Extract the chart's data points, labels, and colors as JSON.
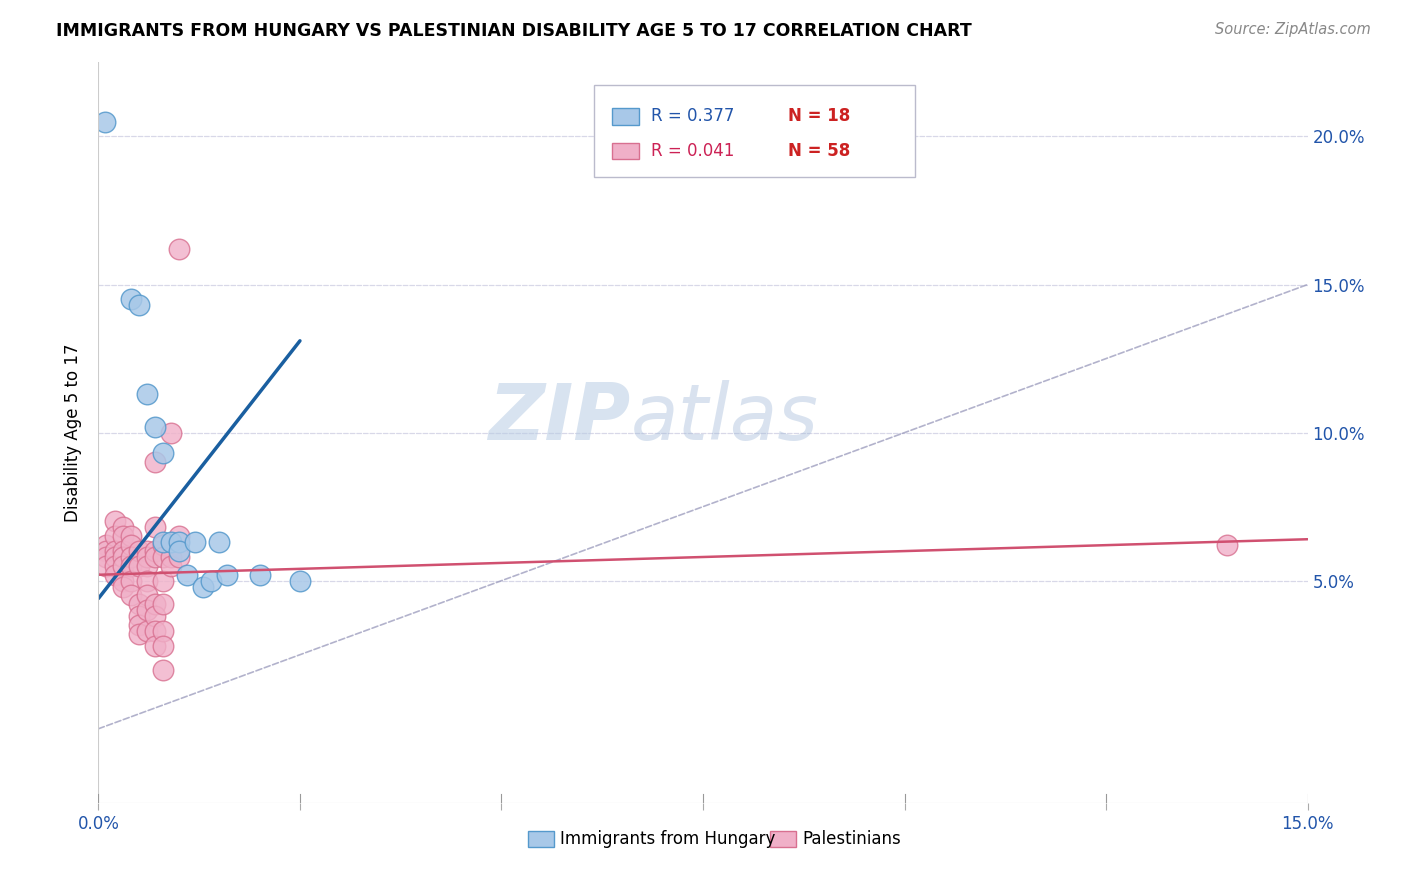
{
  "title": "IMMIGRANTS FROM HUNGARY VS PALESTINIAN DISABILITY AGE 5 TO 17 CORRELATION CHART",
  "source": "Source: ZipAtlas.com",
  "ylabel": "Disability Age 5 to 17",
  "right_yticks": [
    "5.0%",
    "10.0%",
    "15.0%",
    "20.0%"
  ],
  "right_ytick_vals": [
    0.05,
    0.1,
    0.15,
    0.2
  ],
  "legend1_r": "R = 0.377",
  "legend1_n": "N = 18",
  "legend2_r": "R = 0.041",
  "legend2_n": "N = 58",
  "legend_bottom1": "Immigrants from Hungary",
  "legend_bottom2": "Palestinians",
  "hungary_color": "#a8c8e8",
  "hungary_edge": "#5599cc",
  "palestinians_color": "#f0b0c8",
  "palestinians_edge": "#d87090",
  "trendline_hungary_color": "#1a5fa0",
  "trendline_pal_color": "#d05070",
  "diagonal_color": "#9999bb",
  "watermark_zip": "ZIP",
  "watermark_atlas": "atlas",
  "hungary_points": [
    [
      0.0008,
      0.205
    ],
    [
      0.004,
      0.145
    ],
    [
      0.005,
      0.143
    ],
    [
      0.006,
      0.113
    ],
    [
      0.007,
      0.102
    ],
    [
      0.008,
      0.093
    ],
    [
      0.008,
      0.063
    ],
    [
      0.009,
      0.063
    ],
    [
      0.01,
      0.063
    ],
    [
      0.01,
      0.06
    ],
    [
      0.011,
      0.052
    ],
    [
      0.012,
      0.063
    ],
    [
      0.013,
      0.048
    ],
    [
      0.014,
      0.05
    ],
    [
      0.015,
      0.063
    ],
    [
      0.016,
      0.052
    ],
    [
      0.02,
      0.052
    ],
    [
      0.025,
      0.05
    ]
  ],
  "palestinian_points": [
    [
      0.001,
      0.062
    ],
    [
      0.001,
      0.06
    ],
    [
      0.001,
      0.058
    ],
    [
      0.001,
      0.055
    ],
    [
      0.002,
      0.07
    ],
    [
      0.002,
      0.065
    ],
    [
      0.002,
      0.06
    ],
    [
      0.002,
      0.058
    ],
    [
      0.002,
      0.055
    ],
    [
      0.002,
      0.052
    ],
    [
      0.003,
      0.068
    ],
    [
      0.003,
      0.065
    ],
    [
      0.003,
      0.06
    ],
    [
      0.003,
      0.058
    ],
    [
      0.003,
      0.055
    ],
    [
      0.003,
      0.05
    ],
    [
      0.003,
      0.048
    ],
    [
      0.004,
      0.065
    ],
    [
      0.004,
      0.062
    ],
    [
      0.004,
      0.058
    ],
    [
      0.004,
      0.055
    ],
    [
      0.004,
      0.05
    ],
    [
      0.004,
      0.045
    ],
    [
      0.005,
      0.06
    ],
    [
      0.005,
      0.055
    ],
    [
      0.005,
      0.042
    ],
    [
      0.005,
      0.038
    ],
    [
      0.005,
      0.035
    ],
    [
      0.005,
      0.032
    ],
    [
      0.006,
      0.06
    ],
    [
      0.006,
      0.058
    ],
    [
      0.006,
      0.055
    ],
    [
      0.006,
      0.05
    ],
    [
      0.006,
      0.045
    ],
    [
      0.006,
      0.04
    ],
    [
      0.006,
      0.033
    ],
    [
      0.007,
      0.09
    ],
    [
      0.007,
      0.068
    ],
    [
      0.007,
      0.06
    ],
    [
      0.007,
      0.058
    ],
    [
      0.007,
      0.042
    ],
    [
      0.007,
      0.038
    ],
    [
      0.007,
      0.033
    ],
    [
      0.007,
      0.028
    ],
    [
      0.008,
      0.062
    ],
    [
      0.008,
      0.058
    ],
    [
      0.008,
      0.05
    ],
    [
      0.008,
      0.042
    ],
    [
      0.008,
      0.033
    ],
    [
      0.008,
      0.028
    ],
    [
      0.008,
      0.02
    ],
    [
      0.009,
      0.1
    ],
    [
      0.009,
      0.058
    ],
    [
      0.009,
      0.055
    ],
    [
      0.01,
      0.162
    ],
    [
      0.01,
      0.065
    ],
    [
      0.01,
      0.058
    ],
    [
      0.14,
      0.062
    ]
  ],
  "hungary_trendline_x": [
    0.0,
    0.025
  ],
  "hungary_trendline_y": [
    0.044,
    0.131
  ],
  "pal_trendline_x": [
    0.0,
    0.15
  ],
  "pal_trendline_y": [
    0.052,
    0.064
  ],
  "xlim": [
    0.0,
    0.15
  ],
  "ylim": [
    -0.025,
    0.225
  ],
  "background_color": "#ffffff",
  "grid_color": "#d8d8e8"
}
